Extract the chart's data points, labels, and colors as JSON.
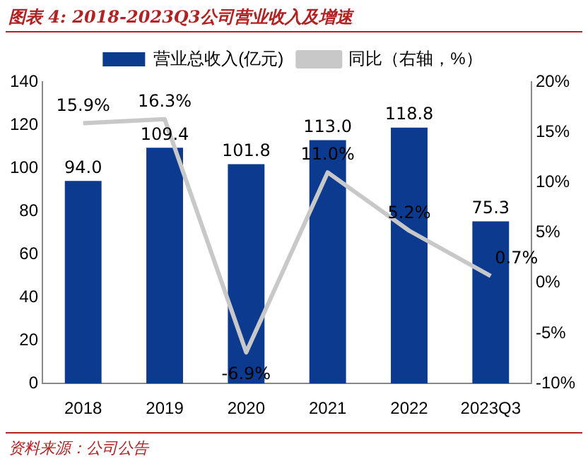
{
  "chart_data": {
    "type": "bar",
    "title": "图表 4: 2018-2023Q3公司营业收入及增速",
    "categories": [
      "2018",
      "2019",
      "2020",
      "2021",
      "2022",
      "2023Q3"
    ],
    "series": [
      {
        "name": "营业总收入(亿元)",
        "color": "#0b3a8f",
        "values": [
          94.0,
          109.4,
          101.8,
          113.0,
          118.8,
          75.3
        ],
        "value_labels": [
          "94.0",
          "109.4",
          "101.8",
          "113.0",
          "118.8",
          "75.3"
        ]
      },
      {
        "name": "同比（右轴，%）",
        "type": "line",
        "axis": "y2",
        "color": "#c8c8c8",
        "values": [
          15.9,
          16.3,
          -6.9,
          11.0,
          5.2,
          0.7
        ],
        "value_labels": [
          "15.9%",
          "16.3%",
          "-6.9%",
          "11.0%",
          "5.2%",
          "0.7%"
        ]
      }
    ],
    "ylim": [
      0,
      140
    ],
    "yticks": [
      0,
      20,
      40,
      60,
      80,
      100,
      120,
      140
    ],
    "y2lim": [
      -10,
      20
    ],
    "y2ticks": [
      {
        "value": -10,
        "label": "-10%"
      },
      {
        "value": -5,
        "label": "-5%"
      },
      {
        "value": 0,
        "label": "0%"
      },
      {
        "value": 5,
        "label": "5%"
      },
      {
        "value": 10,
        "label": "10%"
      },
      {
        "value": 15,
        "label": "15%"
      },
      {
        "value": 20,
        "label": "20%"
      }
    ],
    "grid": false,
    "legend": "top",
    "marker": "none",
    "line_style": "solid",
    "annotations": [
      "资料来源：公司公告"
    ]
  }
}
